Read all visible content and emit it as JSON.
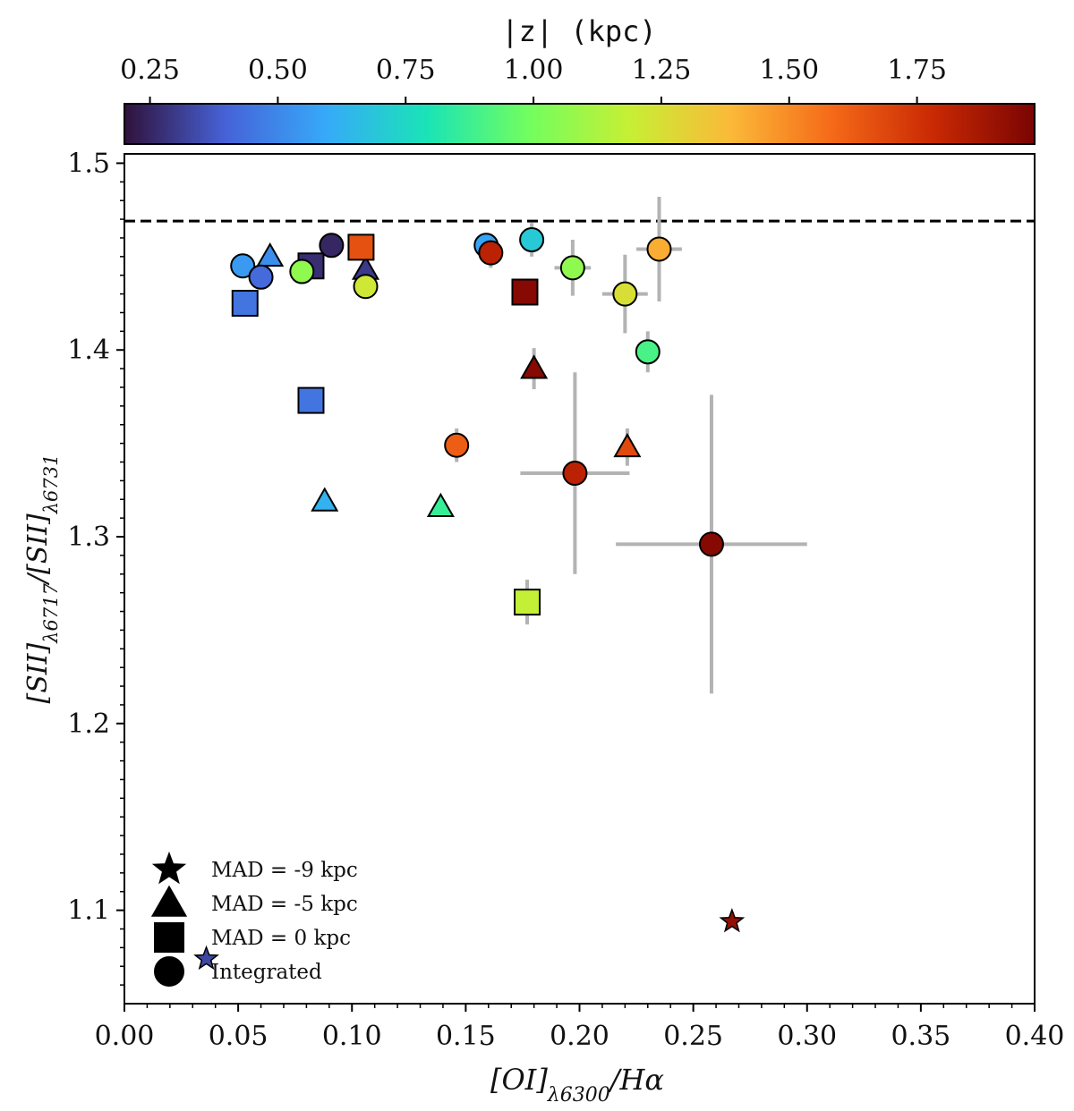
{
  "chart_data": {
    "type": "scatter",
    "xlabel_main": "[OI]",
    "xlabel_sub": "λ6300",
    "xlabel_tail": "/Hα",
    "ylabel_main_1": "[SII]",
    "ylabel_sub_1": "λ6717",
    "ylabel_mid": "/[SII]",
    "ylabel_sub_2": "λ6731",
    "xlim": [
      0.0,
      0.4
    ],
    "ylim": [
      1.05,
      1.505
    ],
    "x_ticks": [
      0.0,
      0.05,
      0.1,
      0.15,
      0.2,
      0.25,
      0.3,
      0.35,
      0.4
    ],
    "x_tick_labels": [
      "0.00",
      "0.05",
      "0.10",
      "0.15",
      "0.20",
      "0.25",
      "0.30",
      "0.35",
      "0.40"
    ],
    "y_ticks": [
      1.1,
      1.2,
      1.3,
      1.4,
      1.5
    ],
    "y_tick_labels": [
      "1.1",
      "1.2",
      "1.3",
      "1.4",
      "1.5"
    ],
    "reference_line_y": 1.469,
    "colorbar": {
      "label": "|z| (kpc)",
      "range": [
        0.2,
        1.98
      ],
      "ticks": [
        0.25,
        0.5,
        0.75,
        1.0,
        1.25,
        1.5,
        1.75
      ],
      "tick_labels": [
        "0.25",
        "0.50",
        "0.75",
        "1.00",
        "1.25",
        "1.50",
        "1.75"
      ],
      "colormap_stops": [
        "#30123b",
        "#4662d7",
        "#36aaf9",
        "#1ae4b6",
        "#72fe5e",
        "#c7ef34",
        "#fbb938",
        "#f56918",
        "#c92903",
        "#7a0403"
      ]
    },
    "legend": [
      {
        "marker": "star",
        "label": "MAD = -9 kpc"
      },
      {
        "marker": "triangle",
        "label": "MAD = -5 kpc"
      },
      {
        "marker": "square",
        "label": "MAD = 0 kpc"
      },
      {
        "marker": "circle",
        "label": "Integrated"
      }
    ],
    "series": [
      {
        "name": "MAD = -9 kpc",
        "marker": "star",
        "points": [
          {
            "x": 0.036,
            "y": 1.074,
            "z": 0.33
          },
          {
            "x": 0.267,
            "y": 1.094,
            "z": 1.92
          }
        ]
      },
      {
        "name": "MAD = -5 kpc",
        "marker": "triangle",
        "points": [
          {
            "x": 0.064,
            "y": 1.45,
            "z": 0.52
          },
          {
            "x": 0.106,
            "y": 1.443,
            "z": 0.3
          },
          {
            "x": 0.088,
            "y": 1.319,
            "z": 0.62
          },
          {
            "x": 0.139,
            "y": 1.316,
            "z": 0.86
          },
          {
            "x": 0.18,
            "y": 1.39,
            "z": 1.95,
            "yerr": 0.011
          },
          {
            "x": 0.221,
            "y": 1.348,
            "z": 1.68,
            "yerr": 0.01
          }
        ]
      },
      {
        "name": "MAD = 0 kpc",
        "marker": "square",
        "points": [
          {
            "x": 0.053,
            "y": 1.425,
            "z": 0.45
          },
          {
            "x": 0.082,
            "y": 1.445,
            "z": 0.27
          },
          {
            "x": 0.104,
            "y": 1.455,
            "z": 1.66
          },
          {
            "x": 0.082,
            "y": 1.373,
            "z": 0.45
          },
          {
            "x": 0.176,
            "y": 1.431,
            "z": 1.95
          },
          {
            "x": 0.177,
            "y": 1.265,
            "z": 1.18,
            "yerr": 0.012
          }
        ]
      },
      {
        "name": "Integrated",
        "marker": "circle",
        "points": [
          {
            "x": 0.052,
            "y": 1.445,
            "z": 0.55
          },
          {
            "x": 0.06,
            "y": 1.439,
            "z": 0.42
          },
          {
            "x": 0.078,
            "y": 1.442,
            "z": 1.06
          },
          {
            "x": 0.091,
            "y": 1.456,
            "z": 0.25
          },
          {
            "x": 0.106,
            "y": 1.434,
            "z": 1.22
          },
          {
            "x": 0.159,
            "y": 1.456,
            "z": 0.58
          },
          {
            "x": 0.161,
            "y": 1.452,
            "z": 1.82,
            "yerr": 0.008
          },
          {
            "x": 0.179,
            "y": 1.459,
            "z": 0.7,
            "yerr": 0.009
          },
          {
            "x": 0.197,
            "y": 1.444,
            "z": 1.06,
            "xerr": 0.008,
            "yerr": 0.015
          },
          {
            "x": 0.22,
            "y": 1.43,
            "z": 1.25,
            "xerr": 0.01,
            "yerr": 0.021
          },
          {
            "x": 0.235,
            "y": 1.454,
            "z": 1.42,
            "xerr": 0.01,
            "yerr": 0.028
          },
          {
            "x": 0.23,
            "y": 1.399,
            "z": 0.9,
            "yerr": 0.011
          },
          {
            "x": 0.146,
            "y": 1.349,
            "z": 1.62,
            "yerr": 0.009
          },
          {
            "x": 0.198,
            "y": 1.334,
            "z": 1.82,
            "xerr": 0.024,
            "yerr": 0.054
          },
          {
            "x": 0.258,
            "y": 1.296,
            "z": 1.95,
            "xerr": 0.042,
            "yerr": 0.08
          }
        ]
      }
    ]
  }
}
